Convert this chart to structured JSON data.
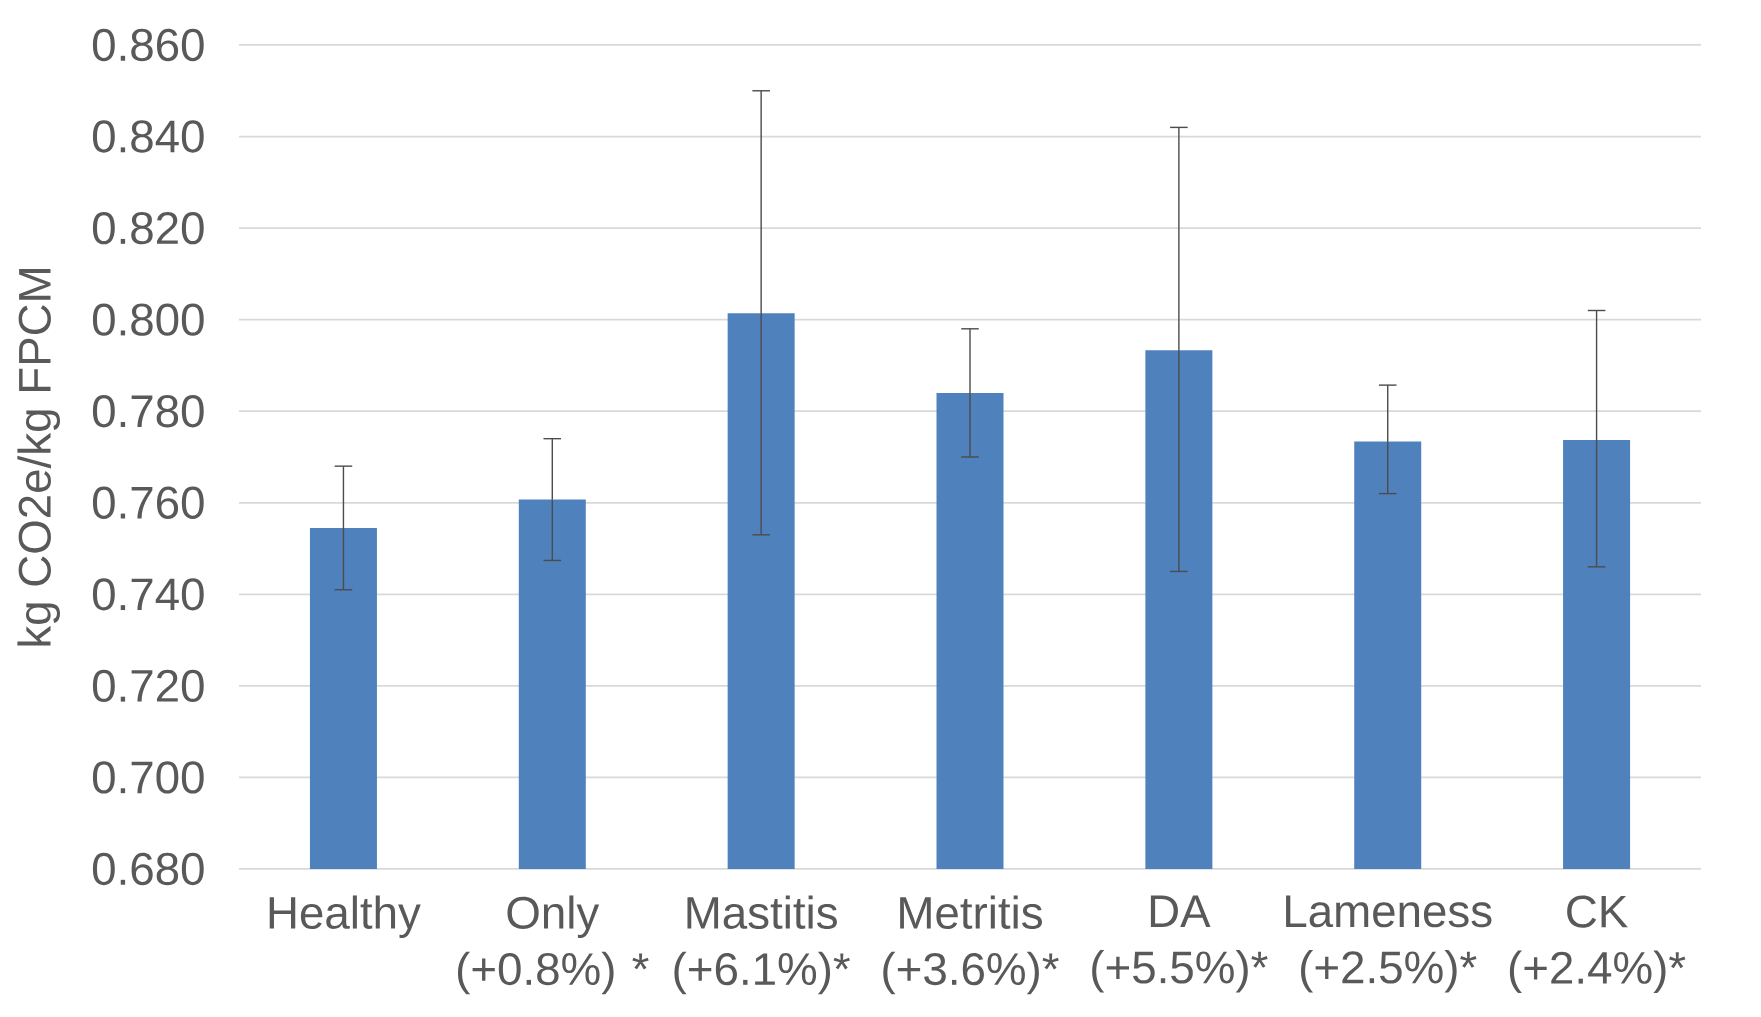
{
  "chart_data": {
    "type": "bar",
    "ylabel": "kg CO2e/kg FPCM",
    "categories": [
      "Healthy",
      "Only (+0.8%) *",
      "Mastitis (+6.1%)*",
      "Metritis (+3.6%)*",
      "DA (+5.5%)*",
      "Lameness (+2.5%)*",
      "CK (+2.4%)*"
    ],
    "values": [
      0.7545,
      0.7607,
      0.8014,
      0.784,
      0.7933,
      0.7734,
      0.7737
    ],
    "errors": [
      [
        0.741,
        0.768
      ],
      [
        0.7474,
        0.774
      ],
      [
        0.753,
        0.85
      ],
      [
        0.77,
        0.798
      ],
      [
        0.745,
        0.842
      ],
      [
        0.762,
        0.7857
      ],
      [
        0.746,
        0.802
      ]
    ],
    "color": "#4f81bd",
    "ylim": [
      0.68,
      0.86
    ],
    "yticks": [
      {
        "value": 0.68,
        "label": "0.680"
      },
      {
        "value": 0.7,
        "label": "0.700"
      },
      {
        "value": 0.72,
        "label": "0.720"
      },
      {
        "value": 0.74,
        "label": "0.740"
      },
      {
        "value": 0.76,
        "label": "0.760"
      },
      {
        "value": 0.78,
        "label": "0.780"
      },
      {
        "value": 0.8,
        "label": "0.800"
      },
      {
        "value": 0.82,
        "label": "0.820"
      },
      {
        "value": 0.84,
        "label": "0.840"
      },
      {
        "value": 0.86,
        "label": "0.860"
      }
    ],
    "grid": "y"
  }
}
